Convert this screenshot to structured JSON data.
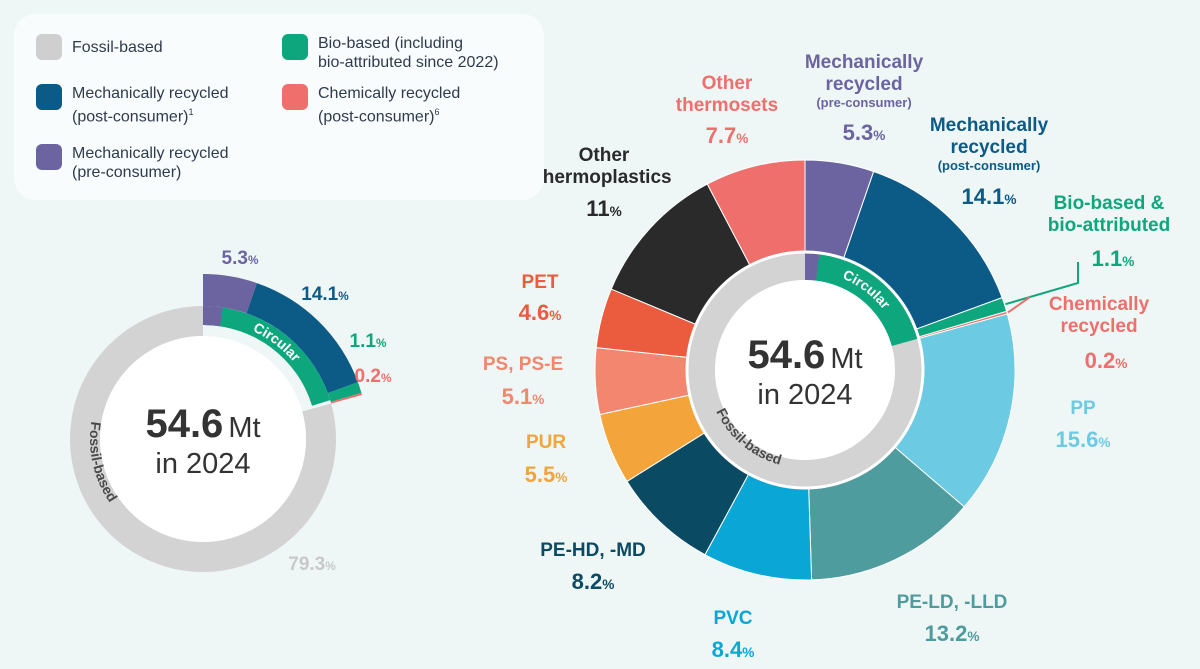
{
  "legend": {
    "items": [
      {
        "label": "Fossil-based",
        "sup": "",
        "color": "#cfcfcf"
      },
      {
        "label": "Bio-based (including\nbio-attributed since 2022)",
        "sup": "",
        "color": "#0ea77d"
      },
      {
        "label": "Mechanically recycled\n(post-consumer)",
        "sup": "1",
        "color": "#0c5a86"
      },
      {
        "label": "Chemically recycled\n(post-consumer)",
        "sup": "6",
        "color": "#ee6f6b"
      },
      {
        "label": "Mechanically recycled\n(pre-consumer)",
        "sup": "",
        "color": "#6c64a0"
      }
    ]
  },
  "chart_data": [
    {
      "type": "donut",
      "center_value": "54.6",
      "center_unit": "Mt",
      "center_sub": "in 2024",
      "ring_labels": {
        "circular": "Circular",
        "fossil": "Fossil-based"
      },
      "slices": [
        {
          "key": "mech_pre",
          "value": 5.3,
          "color": "#6c64a0",
          "num": "5.3",
          "pct": "%"
        },
        {
          "key": "mech_post",
          "value": 14.1,
          "color": "#0c5a86",
          "num": "14.1",
          "pct": "%"
        },
        {
          "key": "bio",
          "value": 1.1,
          "color": "#0ea77d",
          "num": "1.1",
          "pct": "%"
        },
        {
          "key": "chem",
          "value": 0.2,
          "color": "#ee6f6b",
          "num": "0.2",
          "pct": "%"
        },
        {
          "key": "fossil",
          "value": 79.3,
          "color": "#d3d3d3",
          "num": "79.3",
          "pct": "%"
        }
      ]
    },
    {
      "type": "donut",
      "center_value": "54.6",
      "center_unit": "Mt",
      "center_sub": "in 2024",
      "ring_labels": {
        "circular": "Circular",
        "fossil": "Fossil-based"
      },
      "slices": [
        {
          "key": "mech_pre",
          "value": 5.3,
          "color": "#6c64a0",
          "name": "Mechanically\nrecycled",
          "sub": "(pre-consumer)",
          "num": "5.3",
          "pct": "%"
        },
        {
          "key": "mech_post",
          "value": 14.1,
          "color": "#0c5a86",
          "name": "Mechanically\nrecycled",
          "sub": "(post-consumer)",
          "num": "14.1",
          "pct": "%"
        },
        {
          "key": "bio",
          "value": 1.1,
          "color": "#0ea77d",
          "name": "Bio-based &\nbio-attributed",
          "sub": "",
          "num": "1.1",
          "pct": "%"
        },
        {
          "key": "chem",
          "value": 0.2,
          "color": "#ee6f6b",
          "name": "Chemically\nrecycled",
          "sub": "",
          "num": "0.2",
          "pct": "%"
        },
        {
          "key": "pp",
          "value": 15.6,
          "color": "#6ccbe3",
          "name": "PP",
          "sub": "",
          "num": "15.6",
          "pct": "%"
        },
        {
          "key": "peld",
          "value": 13.2,
          "color": "#4f9c9e",
          "name": "PE-LD, -LLD",
          "sub": "",
          "num": "13.2",
          "pct": "%"
        },
        {
          "key": "pvc",
          "value": 8.4,
          "color": "#0aa7d6",
          "name": "PVC",
          "sub": "",
          "num": "8.4",
          "pct": "%"
        },
        {
          "key": "pehd",
          "value": 8.2,
          "color": "#0b4a63",
          "name": "PE-HD, -MD",
          "sub": "",
          "num": "8.2",
          "pct": "%"
        },
        {
          "key": "pur",
          "value": 5.5,
          "color": "#f3a43a",
          "name": "PUR",
          "sub": "",
          "num": "5.5",
          "pct": "%"
        },
        {
          "key": "ps",
          "value": 5.1,
          "color": "#f2866e",
          "name": "PS, PS-E",
          "sub": "",
          "num": "5.1",
          "pct": "%"
        },
        {
          "key": "pet",
          "value": 4.6,
          "color": "#eb5b3d",
          "name": "PET",
          "sub": "",
          "num": "4.6",
          "pct": "%"
        },
        {
          "key": "othtp",
          "value": 11,
          "color": "#2a2a2a",
          "name": "Other\nthermoplastics",
          "sub": "",
          "num": "11",
          "pct": "%"
        },
        {
          "key": "othts",
          "value": 7.7,
          "color": "#ee6f6b",
          "name": "Other\nthermosets",
          "sub": "",
          "num": "7.7",
          "pct": "%"
        }
      ]
    }
  ]
}
